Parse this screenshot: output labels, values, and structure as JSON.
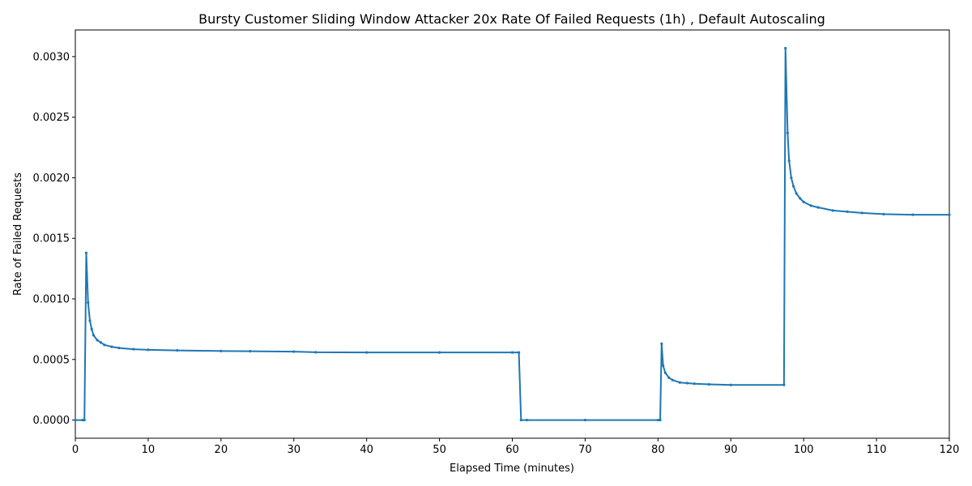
{
  "chart_data": {
    "type": "line",
    "title": "Bursty Customer Sliding Window Attacker 20x Rate Of Failed Requests (1h) , Default Autoscaling",
    "xlabel": "Elapsed Time (minutes)",
    "ylabel": "Rate of Failed Requests",
    "xlim": [
      0,
      120
    ],
    "ylim": [
      -0.00015,
      0.00322
    ],
    "xticks": [
      0,
      10,
      20,
      30,
      40,
      50,
      60,
      70,
      80,
      90,
      100,
      110,
      120
    ],
    "xtick_labels": [
      "0",
      "10",
      "20",
      "30",
      "40",
      "50",
      "60",
      "70",
      "80",
      "90",
      "100",
      "110",
      "120"
    ],
    "yticks": [
      0.0,
      0.0005,
      0.001,
      0.0015,
      0.002,
      0.0025,
      0.003
    ],
    "ytick_labels": [
      "0.0000",
      "0.0005",
      "0.0010",
      "0.0015",
      "0.0020",
      "0.0025",
      "0.0030"
    ],
    "grid": false,
    "color": "#1f77b4",
    "series": [
      {
        "x": [
          0,
          1.0,
          1.25,
          1.5,
          1.75,
          2.0,
          2.25,
          2.5,
          3.0,
          3.5,
          4.0,
          5.0,
          6.0,
          8.0,
          10.0,
          14.0,
          20.0,
          24.0,
          30.0,
          33.0,
          40.0,
          50.0,
          60.0,
          60.9,
          61.2,
          62.0,
          70.0,
          80.0,
          80.3,
          80.5,
          80.7,
          81.0,
          81.5,
          82.0,
          83.0,
          84.0,
          85.0,
          87.0,
          90.0,
          97.3,
          97.5,
          97.8,
          98.0,
          98.3,
          98.6,
          99.0,
          99.5,
          100.0,
          101.0,
          102.0,
          104.0,
          106.0,
          108.0,
          111.0,
          115.0,
          120.0
        ],
        "y": [
          0.0,
          0.0,
          0.0,
          0.00138,
          0.00097,
          0.00082,
          0.00075,
          0.0007,
          0.00066,
          0.00064,
          0.00062,
          0.000605,
          0.000595,
          0.000585,
          0.00058,
          0.000575,
          0.00057,
          0.000568,
          0.000565,
          0.00056,
          0.000558,
          0.000558,
          0.000558,
          0.000558,
          0.0,
          0.0,
          0.0,
          0.0,
          0.0,
          0.00063,
          0.00045,
          0.00039,
          0.00035,
          0.00033,
          0.00031,
          0.000305,
          0.0003,
          0.000295,
          0.00029,
          0.00029,
          0.00307,
          0.00237,
          0.00214,
          0.002,
          0.00193,
          0.00187,
          0.00183,
          0.0018,
          0.00177,
          0.001755,
          0.00173,
          0.00172,
          0.00171,
          0.0017,
          0.001695,
          0.001695
        ]
      }
    ]
  }
}
